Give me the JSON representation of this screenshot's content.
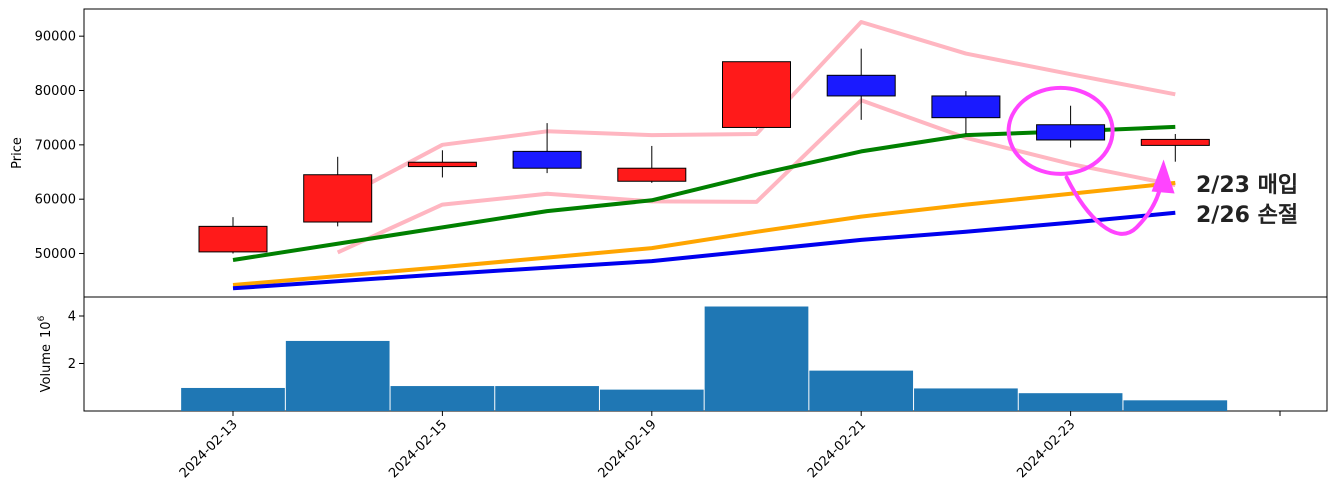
{
  "chart_data": [
    {
      "type": "candlestick",
      "ylabel": "Price",
      "yticks": [
        50000,
        60000,
        70000,
        80000,
        90000
      ],
      "ylim": [
        42000,
        95000
      ],
      "dates": [
        "2024-02-13",
        "2024-02-14",
        "2024-02-15",
        "2024-02-16",
        "2024-02-19",
        "2024-02-20",
        "2024-02-21",
        "2024-02-22",
        "2024-02-23",
        "2024-02-26"
      ],
      "candles": [
        {
          "open": 50300,
          "high": 56700,
          "low": 50000,
          "close": 55000,
          "color": "#ff1a1a"
        },
        {
          "open": 55800,
          "high": 67800,
          "low": 55000,
          "close": 64500,
          "color": "#ff1a1a"
        },
        {
          "open": 66000,
          "high": 69000,
          "low": 64000,
          "close": 66800,
          "color": "#ff1a1a"
        },
        {
          "open": 68800,
          "high": 74000,
          "low": 64800,
          "close": 65700,
          "color": "#1a1aff"
        },
        {
          "open": 63300,
          "high": 69800,
          "low": 63000,
          "close": 65700,
          "color": "#ff1a1a"
        },
        {
          "open": 73200,
          "high": 85300,
          "low": 73000,
          "close": 85300,
          "color": "#ff1a1a"
        },
        {
          "open": 82800,
          "high": 87700,
          "low": 74600,
          "close": 79000,
          "color": "#1a1aff"
        },
        {
          "open": 79000,
          "high": 79900,
          "low": 72000,
          "close": 75000,
          "color": "#1a1aff"
        },
        {
          "open": 73700,
          "high": 77200,
          "low": 69500,
          "close": 70900,
          "color": "#1a1aff"
        },
        {
          "open": 69900,
          "high": 72000,
          "low": 66900,
          "close": 71000,
          "color": "#ff1a1a"
        }
      ],
      "series": [
        {
          "color": "#ffb6c1",
          "x": [
            "2024-02-14",
            "2024-02-15",
            "2024-02-16",
            "2024-02-19",
            "2024-02-20",
            "2024-02-21",
            "2024-02-22",
            "2024-02-23",
            "2024-02-26"
          ],
          "values": [
            59800,
            70000,
            72500,
            71800,
            72000,
            92600,
            86800,
            83000,
            79300
          ]
        },
        {
          "color": "#ffb6c1",
          "x": [
            "2024-02-14",
            "2024-02-15",
            "2024-02-16",
            "2024-02-19",
            "2024-02-20",
            "2024-02-21",
            "2024-02-22",
            "2024-02-23",
            "2024-02-26"
          ],
          "values": [
            50200,
            59000,
            61000,
            59600,
            59500,
            78200,
            71300,
            66500,
            62600
          ]
        },
        {
          "color": "#008000",
          "x": [
            "2024-02-13",
            "2024-02-16",
            "2024-02-19",
            "2024-02-20",
            "2024-02-21",
            "2024-02-22",
            "2024-02-23",
            "2024-02-26"
          ],
          "values": [
            48800,
            57800,
            59800,
            64500,
            68800,
            71800,
            72500,
            73300
          ]
        },
        {
          "color": "#ffa500",
          "x": [
            "2024-02-13",
            "2024-02-15",
            "2024-02-19",
            "2024-02-20",
            "2024-02-21",
            "2024-02-22",
            "2024-02-23",
            "2024-02-26"
          ],
          "values": [
            44200,
            47500,
            51000,
            54000,
            56800,
            59000,
            61000,
            63000
          ]
        },
        {
          "color": "#0000ee",
          "x": [
            "2024-02-13",
            "2024-02-15",
            "2024-02-19",
            "2024-02-21",
            "2024-02-22",
            "2024-02-23",
            "2024-02-26"
          ],
          "values": [
            43600,
            46200,
            48600,
            52500,
            54000,
            55700,
            57500
          ]
        }
      ],
      "annotations": [
        {
          "text": "2/23 매입",
          "color": "#ff44ff"
        },
        {
          "text": "2/26 손절",
          "color": "#ff44ff"
        }
      ]
    },
    {
      "type": "bar",
      "ylabel": "Volume",
      "yunit_exponent": "10",
      "yunit_power": "6",
      "yticks": [
        2,
        4
      ],
      "ylim": [
        0,
        4.8
      ],
      "values": [
        0.97,
        2.95,
        1.05,
        1.05,
        0.9,
        4.4,
        1.7,
        0.95,
        0.75,
        0.45
      ],
      "color": "#1f77b4",
      "xticks": [
        "2024-02-13",
        "2024-02-15",
        "2024-02-19",
        "2024-02-21",
        "2024-02-23",
        ""
      ]
    }
  ]
}
